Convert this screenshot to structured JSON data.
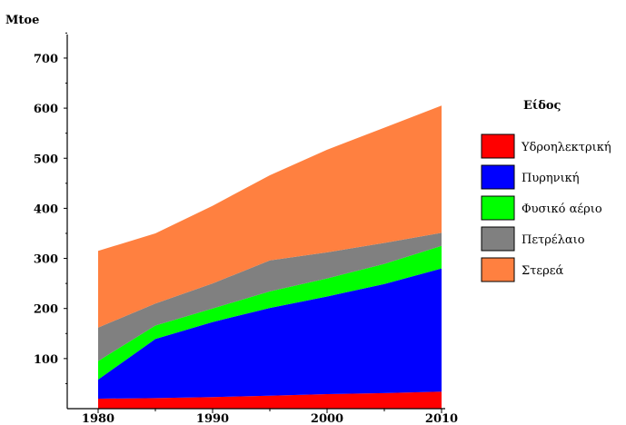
{
  "chart_data": {
    "type": "area",
    "stacked": true,
    "ylabel": "Mtoe",
    "ylim": [
      0,
      750
    ],
    "xlim": [
      1975,
      2010
    ],
    "y_ticks": [
      100,
      200,
      300,
      400,
      500,
      600,
      700
    ],
    "x_ticks": [
      1980,
      1990,
      2000,
      2010
    ],
    "x": [
      1980,
      1985,
      1990,
      1995,
      2000,
      2005,
      2010
    ],
    "legend_title": "Είδος",
    "legend_position": "right",
    "series": [
      {
        "name": "Υδροηλεκτρική",
        "color": "#ff0000",
        "values": [
          20,
          21,
          23,
          26,
          29,
          31,
          34
        ]
      },
      {
        "name": "Πυρηνική",
        "color": "#0000ff",
        "values": [
          38,
          118,
          150,
          175,
          195,
          218,
          246
        ]
      },
      {
        "name": "Φυσικό αέριο",
        "color": "#00ff00",
        "values": [
          37,
          27,
          27,
          33,
          36,
          40,
          45
        ]
      },
      {
        "name": "Πετρέλαιο",
        "color": "#808080",
        "values": [
          67,
          44,
          50,
          62,
          52,
          42,
          26
        ]
      },
      {
        "name": "Στερεά",
        "color": "#ff8040",
        "values": [
          153,
          140,
          155,
          170,
          205,
          230,
          254
        ]
      }
    ]
  }
}
